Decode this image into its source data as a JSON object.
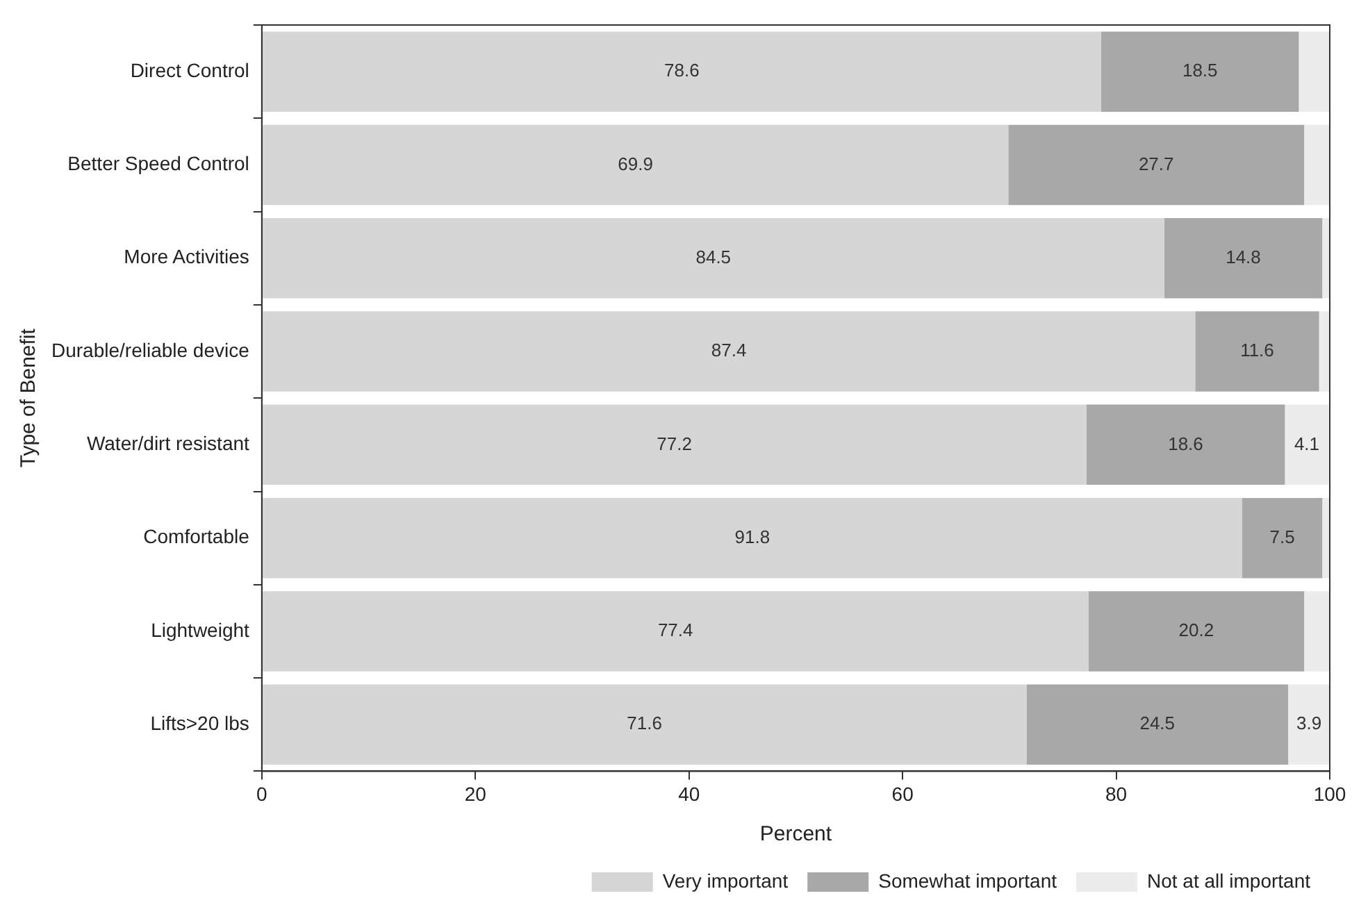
{
  "chart_data": {
    "type": "bar",
    "orientation": "horizontal",
    "stacked": true,
    "xlabel": "Percent",
    "ylabel": "Type of Benefit",
    "categories": [
      "Direct Control",
      "Better Speed Control",
      "More Activities",
      "Durable/reliable device",
      "Water/dirt resistant",
      "Comfortable",
      "Lightweight",
      "Lifts>20 lbs"
    ],
    "series": [
      {
        "name": "Very important",
        "color": "#d6d6d6",
        "values": [
          78.6,
          69.9,
          84.5,
          87.4,
          77.2,
          91.8,
          77.4,
          71.6
        ],
        "value_labels": [
          "78.6",
          "69.9",
          "84.5",
          "87.4",
          "77.2",
          "91.8",
          "77.4",
          "71.6"
        ]
      },
      {
        "name": "Somewhat important",
        "color": "#a8a8a8",
        "values": [
          18.5,
          27.7,
          14.8,
          11.6,
          18.6,
          7.5,
          20.2,
          24.5
        ],
        "value_labels": [
          "18.5",
          "27.7",
          "14.8",
          "11.6",
          "18.6",
          "7.5",
          "20.2",
          "24.5"
        ]
      },
      {
        "name": "Not at all important",
        "color": "#ececec",
        "values": [
          2.9,
          2.4,
          0.7,
          1.0,
          4.1,
          0.7,
          2.4,
          3.9
        ],
        "value_labels": [
          null,
          null,
          null,
          null,
          "4.1",
          null,
          null,
          "3.9"
        ]
      }
    ],
    "xlim": [
      0,
      100
    ],
    "xticks": [
      0,
      20,
      40,
      60,
      80,
      100
    ],
    "grid": false,
    "legend": "bottom"
  }
}
